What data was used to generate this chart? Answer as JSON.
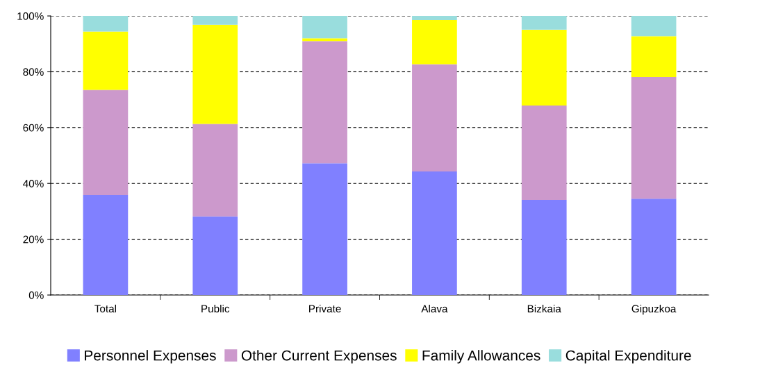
{
  "chart_data": {
    "type": "bar",
    "stacked": true,
    "categories": [
      "Total",
      "Public",
      "Private",
      "Alava",
      "Bizkaia",
      "Gipuzkoa"
    ],
    "series": [
      {
        "name": "Personnel Expenses",
        "color": "#8080ff",
        "values": [
          35.8,
          28.2,
          47.2,
          44.3,
          34.1,
          34.5
        ]
      },
      {
        "name": "Other Current Expenses",
        "color": "#cc99cc",
        "values": [
          37.7,
          33.1,
          43.8,
          38.4,
          33.8,
          43.6
        ]
      },
      {
        "name": "Family Allowances",
        "color": "#ffff00",
        "values": [
          20.9,
          35.5,
          1.0,
          15.8,
          27.2,
          14.6
        ]
      },
      {
        "name": "Capital Expenditure",
        "color": "#99dddd",
        "values": [
          5.6,
          3.2,
          8.0,
          1.5,
          4.9,
          7.3
        ]
      }
    ],
    "ylim": [
      0,
      100
    ],
    "yticks": [
      {
        "value": 0,
        "label": "0%"
      },
      {
        "value": 20,
        "label": "20%"
      },
      {
        "value": 40,
        "label": "40%"
      },
      {
        "value": 60,
        "label": "60%"
      },
      {
        "value": 80,
        "label": "80%"
      },
      {
        "value": 100,
        "label": "100%"
      }
    ],
    "grid": "y",
    "legend": "bottom"
  }
}
